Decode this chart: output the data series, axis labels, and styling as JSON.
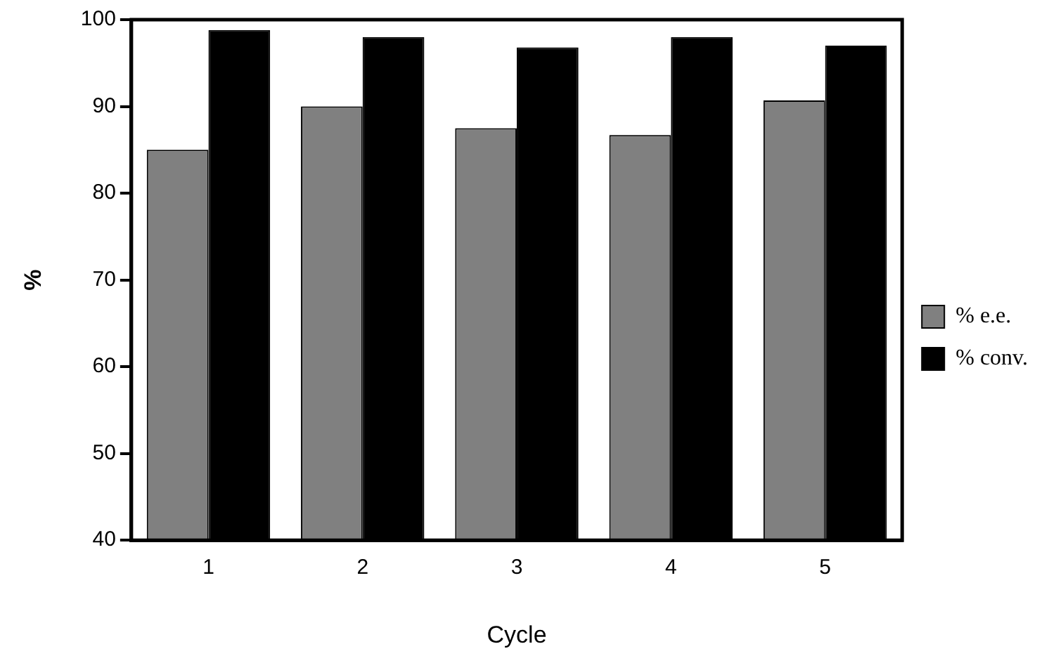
{
  "chart_data": {
    "type": "bar",
    "xlabel": "Cycle",
    "ylabel": "%",
    "categories": [
      "1",
      "2",
      "3",
      "4",
      "5"
    ],
    "series": [
      {
        "name": "% e.e.",
        "color": "#808080",
        "values": [
          85,
          90,
          87.5,
          86.7,
          90.7
        ]
      },
      {
        "name": "% conv.",
        "color": "#000000",
        "values": [
          98.8,
          98,
          96.8,
          98,
          97
        ]
      }
    ],
    "ylim": [
      40,
      100
    ],
    "yticks": [
      40,
      50,
      60,
      70,
      80,
      90,
      100
    ],
    "grid": false,
    "legend": "right"
  }
}
